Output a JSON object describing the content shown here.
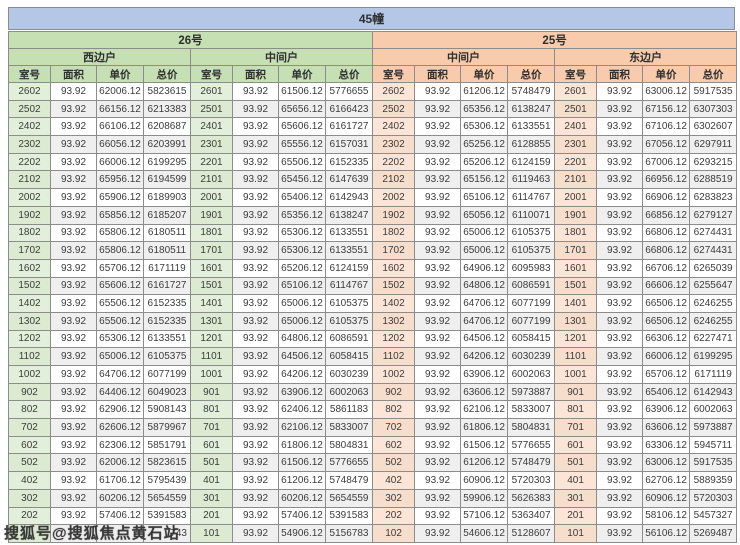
{
  "title": "45幢",
  "watermark": {
    "text": "搜狐号@搜狐焦点黄石站"
  },
  "table": {
    "columns": [
      "室号",
      "面积",
      "单价",
      "总价"
    ],
    "buildings": [
      {
        "name": "26号",
        "theme": "green",
        "units": [
          {
            "name": "西边户",
            "rows": [
              [
                "2602",
                "93.92",
                "62006.12",
                "5823615"
              ],
              [
                "2502",
                "93.92",
                "66156.12",
                "6213383"
              ],
              [
                "2402",
                "93.92",
                "66106.12",
                "6208687"
              ],
              [
                "2302",
                "93.92",
                "66056.12",
                "6203991"
              ],
              [
                "2202",
                "93.92",
                "66006.12",
                "6199295"
              ],
              [
                "2102",
                "93.92",
                "65956.12",
                "6194599"
              ],
              [
                "2002",
                "93.92",
                "65906.12",
                "6189903"
              ],
              [
                "1902",
                "93.92",
                "65856.12",
                "6185207"
              ],
              [
                "1802",
                "93.92",
                "65806.12",
                "6180511"
              ],
              [
                "1702",
                "93.92",
                "65806.12",
                "6180511"
              ],
              [
                "1602",
                "93.92",
                "65706.12",
                "6171119"
              ],
              [
                "1502",
                "93.92",
                "65606.12",
                "6161727"
              ],
              [
                "1402",
                "93.92",
                "65506.12",
                "6152335"
              ],
              [
                "1302",
                "93.92",
                "65506.12",
                "6152335"
              ],
              [
                "1202",
                "93.92",
                "65306.12",
                "6133551"
              ],
              [
                "1102",
                "93.92",
                "65006.12",
                "6105375"
              ],
              [
                "1002",
                "93.92",
                "64706.12",
                "6077199"
              ],
              [
                "902",
                "93.92",
                "64406.12",
                "6049023"
              ],
              [
                "802",
                "93.92",
                "62906.12",
                "5908143"
              ],
              [
                "702",
                "93.92",
                "62606.12",
                "5879967"
              ],
              [
                "602",
                "93.92",
                "62306.12",
                "5851791"
              ],
              [
                "502",
                "93.92",
                "62006.12",
                "5823615"
              ],
              [
                "402",
                "93.92",
                "61706.12",
                "5795439"
              ],
              [
                "302",
                "93.92",
                "60206.12",
                "5654559"
              ],
              [
                "202",
                "93.92",
                "57406.12",
                "5391583"
              ],
              [
                "",
                "",
                "",
                "743"
              ]
            ]
          },
          {
            "name": "中间户",
            "rows": [
              [
                "2601",
                "93.92",
                "61506.12",
                "5776655"
              ],
              [
                "2501",
                "93.92",
                "65656.12",
                "6166423"
              ],
              [
                "2401",
                "93.92",
                "65606.12",
                "6161727"
              ],
              [
                "2301",
                "93.92",
                "65556.12",
                "6157031"
              ],
              [
                "2201",
                "93.92",
                "65506.12",
                "6152335"
              ],
              [
                "2101",
                "93.92",
                "65456.12",
                "6147639"
              ],
              [
                "2001",
                "93.92",
                "65406.12",
                "6142943"
              ],
              [
                "1901",
                "93.92",
                "65356.12",
                "6138247"
              ],
              [
                "1801",
                "93.92",
                "65306.12",
                "6133551"
              ],
              [
                "1701",
                "93.92",
                "65306.12",
                "6133551"
              ],
              [
                "1601",
                "93.92",
                "65206.12",
                "6124159"
              ],
              [
                "1501",
                "93.92",
                "65106.12",
                "6114767"
              ],
              [
                "1401",
                "93.92",
                "65006.12",
                "6105375"
              ],
              [
                "1301",
                "93.92",
                "65006.12",
                "6105375"
              ],
              [
                "1201",
                "93.92",
                "64806.12",
                "6086591"
              ],
              [
                "1101",
                "93.92",
                "64506.12",
                "6058415"
              ],
              [
                "1001",
                "93.92",
                "64206.12",
                "6030239"
              ],
              [
                "901",
                "93.92",
                "63906.12",
                "6002063"
              ],
              [
                "801",
                "93.92",
                "62406.12",
                "5861183"
              ],
              [
                "701",
                "93.92",
                "62106.12",
                "5833007"
              ],
              [
                "601",
                "93.92",
                "61806.12",
                "5804831"
              ],
              [
                "501",
                "93.92",
                "61506.12",
                "5776655"
              ],
              [
                "401",
                "93.92",
                "61206.12",
                "5748479"
              ],
              [
                "301",
                "93.92",
                "60206.12",
                "5654559"
              ],
              [
                "201",
                "93.92",
                "57406.12",
                "5391583"
              ],
              [
                "101",
                "93.92",
                "54906.12",
                "5156783"
              ]
            ]
          }
        ]
      },
      {
        "name": "25号",
        "theme": "peach",
        "units": [
          {
            "name": "中间户",
            "rows": [
              [
                "2602",
                "93.92",
                "61206.12",
                "5748479"
              ],
              [
                "2502",
                "93.92",
                "65356.12",
                "6138247"
              ],
              [
                "2402",
                "93.92",
                "65306.12",
                "6133551"
              ],
              [
                "2302",
                "93.92",
                "65256.12",
                "6128855"
              ],
              [
                "2202",
                "93.92",
                "65206.12",
                "6124159"
              ],
              [
                "2102",
                "93.92",
                "65156.12",
                "6119463"
              ],
              [
                "2002",
                "93.92",
                "65106.12",
                "6114767"
              ],
              [
                "1902",
                "93.92",
                "65056.12",
                "6110071"
              ],
              [
                "1802",
                "93.92",
                "65006.12",
                "6105375"
              ],
              [
                "1702",
                "93.92",
                "65006.12",
                "6105375"
              ],
              [
                "1602",
                "93.92",
                "64906.12",
                "6095983"
              ],
              [
                "1502",
                "93.92",
                "64806.12",
                "6086591"
              ],
              [
                "1402",
                "93.92",
                "64706.12",
                "6077199"
              ],
              [
                "1302",
                "93.92",
                "64706.12",
                "6077199"
              ],
              [
                "1202",
                "93.92",
                "64506.12",
                "6058415"
              ],
              [
                "1102",
                "93.92",
                "64206.12",
                "6030239"
              ],
              [
                "1002",
                "93.92",
                "63906.12",
                "6002063"
              ],
              [
                "902",
                "93.92",
                "63606.12",
                "5973887"
              ],
              [
                "802",
                "93.92",
                "62106.12",
                "5833007"
              ],
              [
                "702",
                "93.92",
                "61806.12",
                "5804831"
              ],
              [
                "602",
                "93.92",
                "61506.12",
                "5776655"
              ],
              [
                "502",
                "93.92",
                "61206.12",
                "5748479"
              ],
              [
                "402",
                "93.92",
                "60906.12",
                "5720303"
              ],
              [
                "302",
                "93.92",
                "59906.12",
                "5626383"
              ],
              [
                "202",
                "93.92",
                "57106.12",
                "5363407"
              ],
              [
                "102",
                "93.92",
                "54606.12",
                "5128607"
              ]
            ]
          },
          {
            "name": "东边户",
            "rows": [
              [
                "2601",
                "93.92",
                "63006.12",
                "5917535"
              ],
              [
                "2501",
                "93.92",
                "67156.12",
                "6307303"
              ],
              [
                "2401",
                "93.92",
                "67106.12",
                "6302607"
              ],
              [
                "2301",
                "93.92",
                "67056.12",
                "6297911"
              ],
              [
                "2201",
                "93.92",
                "67006.12",
                "6293215"
              ],
              [
                "2101",
                "93.92",
                "66956.12",
                "6288519"
              ],
              [
                "2001",
                "93.92",
                "66906.12",
                "6283823"
              ],
              [
                "1901",
                "93.92",
                "66856.12",
                "6279127"
              ],
              [
                "1801",
                "93.92",
                "66806.12",
                "6274431"
              ],
              [
                "1701",
                "93.92",
                "66806.12",
                "6274431"
              ],
              [
                "1601",
                "93.92",
                "66706.12",
                "6265039"
              ],
              [
                "1501",
                "93.92",
                "66606.12",
                "6255647"
              ],
              [
                "1401",
                "93.92",
                "66506.12",
                "6246255"
              ],
              [
                "1301",
                "93.92",
                "66506.12",
                "6246255"
              ],
              [
                "1201",
                "93.92",
                "66306.12",
                "6227471"
              ],
              [
                "1101",
                "93.92",
                "66006.12",
                "6199295"
              ],
              [
                "1001",
                "93.92",
                "65706.12",
                "6171119"
              ],
              [
                "901",
                "93.92",
                "65406.12",
                "6142943"
              ],
              [
                "801",
                "93.92",
                "63906.12",
                "6002063"
              ],
              [
                "701",
                "93.92",
                "63606.12",
                "5973887"
              ],
              [
                "601",
                "93.92",
                "63306.12",
                "5945711"
              ],
              [
                "501",
                "93.92",
                "63006.12",
                "5917535"
              ],
              [
                "401",
                "93.92",
                "62706.12",
                "5889359"
              ],
              [
                "301",
                "93.92",
                "60906.12",
                "5720303"
              ],
              [
                "201",
                "93.92",
                "58106.12",
                "5457327"
              ],
              [
                "101",
                "93.92",
                "56106.12",
                "5269487"
              ]
            ]
          }
        ]
      }
    ]
  }
}
